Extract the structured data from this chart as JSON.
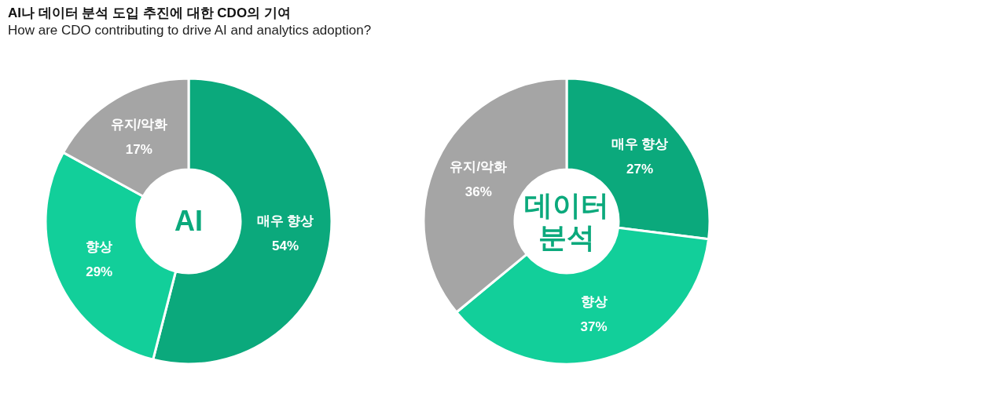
{
  "chart_data": [
    {
      "type": "donut",
      "title": "AI나 데이터 분석 도입 추진에 대한 CDO의 기여",
      "subtitle": "How are CDO contributing to drive AI and analytics adoption?",
      "annotations": [
        "AI"
      ],
      "categories": [
        "매우 향상",
        "향상",
        "유지/악화"
      ],
      "values": [
        54,
        29,
        17
      ],
      "value_labels": [
        "54%",
        "29%",
        "17%"
      ],
      "colors": [
        "#0ba97c",
        "#12cf9a",
        "#a5a5a5"
      ]
    },
    {
      "type": "donut",
      "annotations": [
        "데이터 분석"
      ],
      "categories": [
        "매우 향상",
        "향상",
        "유지/악화"
      ],
      "values": [
        27,
        37,
        36
      ],
      "value_labels": [
        "27%",
        "37%",
        "36%"
      ],
      "colors": [
        "#0ba97c",
        "#12cf9a",
        "#a5a5a5"
      ]
    }
  ]
}
